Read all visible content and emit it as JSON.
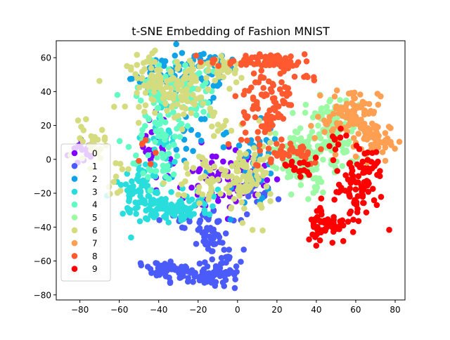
{
  "chart_data": {
    "type": "scatter",
    "title": "t-SNE Embedding of Fashion MNIST",
    "xlabel": "",
    "ylabel": "",
    "xlim": [
      -92,
      85
    ],
    "ylim": [
      -83,
      70
    ],
    "xticks": [
      -80,
      -60,
      -40,
      -20,
      0,
      20,
      40,
      60,
      80
    ],
    "yticks": [
      -80,
      -60,
      -40,
      -20,
      0,
      20,
      40,
      60
    ],
    "xtick_labels": [
      "−80",
      "−60",
      "−40",
      "−20",
      "0",
      "20",
      "40",
      "60",
      "80"
    ],
    "ytick_labels": [
      "−80",
      "−60",
      "−40",
      "−20",
      "0",
      "20",
      "40",
      "60"
    ],
    "grid": false,
    "legend_position": "left",
    "series": [
      {
        "name": "0",
        "color": "#8000ff",
        "clusters": [
          {
            "cx": -78,
            "cy": 5,
            "sx": 4,
            "sy": 5,
            "n": 18
          },
          {
            "cx": -40,
            "cy": 8,
            "sx": 4,
            "sy": 10,
            "n": 22
          },
          {
            "cx": -12,
            "cy": -15,
            "sx": 10,
            "sy": 10,
            "n": 50
          },
          {
            "cx": 5,
            "cy": -10,
            "sx": 8,
            "sy": 8,
            "n": 30
          }
        ]
      },
      {
        "name": "1",
        "color": "#4a5bf9",
        "clusters": [
          {
            "cx": -40,
            "cy": -64,
            "sx": 4,
            "sy": 2.5,
            "n": 30
          },
          {
            "cx": -28,
            "cy": -66,
            "sx": 6,
            "sy": 3,
            "n": 40
          },
          {
            "cx": -15,
            "cy": -70,
            "sx": 5,
            "sy": 3,
            "n": 35
          },
          {
            "cx": -5,
            "cy": -62,
            "sx": 4,
            "sy": 5,
            "n": 30
          },
          {
            "cx": -13,
            "cy": -48,
            "sx": 4,
            "sy": 5,
            "n": 30
          },
          {
            "cx": -15,
            "cy": -37,
            "sx": 3,
            "sy": 3,
            "n": 15
          },
          {
            "cx": -30,
            "cy": -35,
            "sx": 6,
            "sy": 3,
            "n": 15
          },
          {
            "cx": 10,
            "cy": -25,
            "sx": 6,
            "sy": 6,
            "n": 15
          }
        ]
      },
      {
        "name": "2",
        "color": "#0fa2e8",
        "clusters": [
          {
            "cx": -25,
            "cy": 48,
            "sx": 14,
            "sy": 7,
            "n": 70
          },
          {
            "cx": -15,
            "cy": 58,
            "sx": 5,
            "sy": 2,
            "n": 20
          },
          {
            "cx": 10,
            "cy": -5,
            "sx": 6,
            "sy": 12,
            "n": 50
          },
          {
            "cx": -42,
            "cy": 50,
            "sx": 4,
            "sy": 6,
            "n": 20
          },
          {
            "cx": -20,
            "cy": 10,
            "sx": 10,
            "sy": 10,
            "n": 20
          }
        ]
      },
      {
        "name": "3",
        "color": "#2adddd",
        "clusters": [
          {
            "cx": -50,
            "cy": -22,
            "sx": 7,
            "sy": 6,
            "n": 60
          },
          {
            "cx": -40,
            "cy": -30,
            "sx": 7,
            "sy": 4,
            "n": 40
          },
          {
            "cx": -27,
            "cy": -30,
            "sx": 6,
            "sy": 4,
            "n": 35
          },
          {
            "cx": -48,
            "cy": -8,
            "sx": 4,
            "sy": 6,
            "n": 20
          },
          {
            "cx": -38,
            "cy": 10,
            "sx": 4,
            "sy": 12,
            "n": 25
          },
          {
            "cx": -18,
            "cy": -22,
            "sx": 5,
            "sy": 4,
            "n": 15
          }
        ]
      },
      {
        "name": "4",
        "color": "#62fbc4",
        "clusters": [
          {
            "cx": -40,
            "cy": 25,
            "sx": 8,
            "sy": 12,
            "n": 70
          },
          {
            "cx": -30,
            "cy": 45,
            "sx": 8,
            "sy": 7,
            "n": 40
          },
          {
            "cx": -42,
            "cy": -5,
            "sx": 5,
            "sy": 6,
            "n": 25
          },
          {
            "cx": -20,
            "cy": 35,
            "sx": 5,
            "sy": 8,
            "n": 20
          }
        ]
      },
      {
        "name": "5",
        "color": "#9cfaa4",
        "clusters": [
          {
            "cx": 38,
            "cy": 5,
            "sx": 9,
            "sy": 7,
            "n": 80
          },
          {
            "cx": 46,
            "cy": 25,
            "sx": 6,
            "sy": 6,
            "n": 50
          },
          {
            "cx": 30,
            "cy": -5,
            "sx": 6,
            "sy": 5,
            "n": 30
          },
          {
            "cx": 52,
            "cy": 8,
            "sx": 5,
            "sy": 6,
            "n": 30
          },
          {
            "cx": 40,
            "cy": -15,
            "sx": 3,
            "sy": 3,
            "n": 10
          }
        ]
      },
      {
        "name": "6",
        "color": "#d4dc7f",
        "clusters": [
          {
            "cx": -40,
            "cy": 45,
            "sx": 8,
            "sy": 8,
            "n": 80
          },
          {
            "cx": -20,
            "cy": 50,
            "sx": 8,
            "sy": 6,
            "n": 50
          },
          {
            "cx": -5,
            "cy": 52,
            "sx": 3,
            "sy": 4,
            "n": 15
          },
          {
            "cx": -28,
            "cy": 32,
            "sx": 6,
            "sy": 6,
            "n": 25
          },
          {
            "cx": 5,
            "cy": -12,
            "sx": 7,
            "sy": 12,
            "n": 90
          },
          {
            "cx": -15,
            "cy": -12,
            "sx": 10,
            "sy": 10,
            "n": 40
          },
          {
            "cx": -75,
            "cy": 8,
            "sx": 4,
            "sy": 6,
            "n": 25
          },
          {
            "cx": -62,
            "cy": -10,
            "sx": 3,
            "sy": 5,
            "n": 10
          },
          {
            "cx": -10,
            "cy": 20,
            "sx": 3,
            "sy": 5,
            "n": 8
          }
        ]
      },
      {
        "name": "7",
        "color": "#ff9f52",
        "clusters": [
          {
            "cx": 60,
            "cy": 30,
            "sx": 6,
            "sy": 6,
            "n": 70
          },
          {
            "cx": 65,
            "cy": 12,
            "sx": 6,
            "sy": 6,
            "n": 40
          },
          {
            "cx": 48,
            "cy": 20,
            "sx": 6,
            "sy": 4,
            "n": 25
          },
          {
            "cx": 72,
            "cy": 8,
            "sx": 3,
            "sy": 4,
            "n": 15
          }
        ]
      },
      {
        "name": "8",
        "color": "#ff5930",
        "clusters": [
          {
            "cx": 10,
            "cy": 58,
            "sx": 12,
            "sy": 2,
            "n": 50
          },
          {
            "cx": 24,
            "cy": 56,
            "sx": 4,
            "sy": 2.5,
            "n": 20
          },
          {
            "cx": 12,
            "cy": 30,
            "sx": 5,
            "sy": 14,
            "n": 70
          },
          {
            "cx": 22,
            "cy": 38,
            "sx": 4,
            "sy": 6,
            "n": 20
          },
          {
            "cx": 27,
            "cy": 5,
            "sx": 9,
            "sy": 4,
            "n": 35
          },
          {
            "cx": 35,
            "cy": 48,
            "sx": 3,
            "sy": 1.5,
            "n": 6
          },
          {
            "cx": -45,
            "cy": 10,
            "sx": 3,
            "sy": 5,
            "n": 6
          }
        ]
      },
      {
        "name": "9",
        "color": "#ff0000",
        "clusters": [
          {
            "cx": 60,
            "cy": -20,
            "sx": 6,
            "sy": 10,
            "n": 60
          },
          {
            "cx": 45,
            "cy": -38,
            "sx": 5,
            "sy": 6,
            "n": 55
          },
          {
            "cx": 66,
            "cy": -5,
            "sx": 4,
            "sy": 6,
            "n": 35
          },
          {
            "cx": 30,
            "cy": -5,
            "sx": 4,
            "sy": 4,
            "n": 15
          },
          {
            "cx": 50,
            "cy": 12,
            "sx": 4,
            "sy": 4,
            "n": 10
          }
        ]
      }
    ]
  }
}
